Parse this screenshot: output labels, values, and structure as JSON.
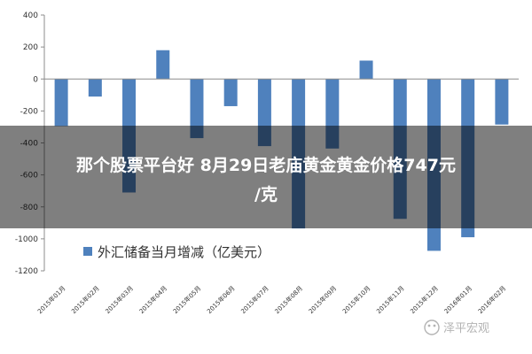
{
  "chart_data": {
    "type": "bar",
    "categories": [
      "2015年01月",
      "2015年02月",
      "2015年03月",
      "2015年04月",
      "2015年05月",
      "2015年06月",
      "2015年07月",
      "2015年08月",
      "2015年09月",
      "2015年10月",
      "2015年11月",
      "2015年12月",
      "2016年01月",
      "2016年02月"
    ],
    "series": [
      {
        "name": "外汇储备当月增减（亿美元）",
        "values": [
          -295,
          -110,
          -710,
          180,
          -370,
          -170,
          -420,
          -935,
          -435,
          115,
          -875,
          -1075,
          -990,
          -285
        ]
      }
    ],
    "yticks": [
      400,
      200,
      0,
      -200,
      -400,
      -600,
      -800,
      -1000,
      -1200
    ],
    "ylim": [
      -1200,
      400
    ],
    "bar_color": "#4f81bd",
    "grid": false,
    "legend_position": "bottom-left"
  },
  "overlay": {
    "line1": "那个股票平台好 8月29日老庙黄金黄金价格747元",
    "line2": "/克"
  },
  "watermark": "泽平宏观"
}
